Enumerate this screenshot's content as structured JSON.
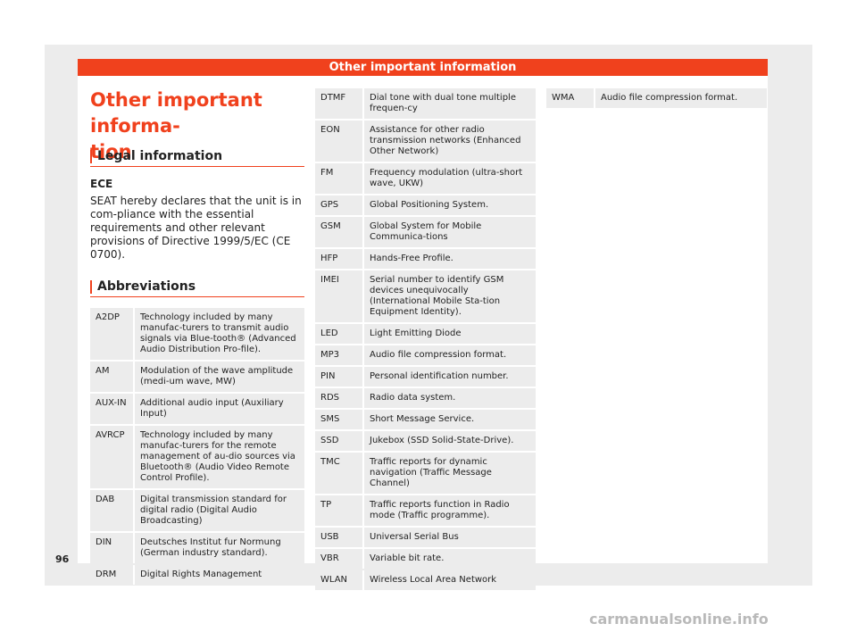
{
  "header": {
    "title": "Other important information"
  },
  "main": {
    "title": "Other important informa-\ntion",
    "legal_heading": "Legal information",
    "ece_label": "ECE",
    "ece_text": "SEAT hereby declares that the unit is in com-pliance with the essential requirements and other relevant provisions of Directive 1999/5/EC (CE 0700).",
    "abbreviations_heading": "Abbreviations"
  },
  "abbreviations_col1": [
    {
      "abbr": "A2DP",
      "desc": "Technology included by many manufac-turers to transmit audio signals via Blue-tooth® (Advanced Audio Distribution Pro-file)."
    },
    {
      "abbr": "AM",
      "desc": "Modulation of the wave amplitude (medi-um wave, MW)"
    },
    {
      "abbr": "AUX-IN",
      "desc": "Additional audio input (Auxiliary Input)"
    },
    {
      "abbr": "AVRCP",
      "desc": "Technology included by many manufac-turers for the remote management of au-dio sources via Bluetooth® (Audio Video Remote Control Profile)."
    },
    {
      "abbr": "DAB",
      "desc": "Digital transmission standard for digital radio (Digital Audio Broadcasting)"
    },
    {
      "abbr": "DIN",
      "desc": "Deutsches Institut fur Normung (German industry standard)."
    },
    {
      "abbr": "DRM",
      "desc": "Digital Rights Management"
    }
  ],
  "abbreviations_col2": [
    {
      "abbr": "DTMF",
      "desc": "Dial tone with dual tone multiple frequen-cy"
    },
    {
      "abbr": "EON",
      "desc": "Assistance for other radio transmission networks (Enhanced Other Network)"
    },
    {
      "abbr": "FM",
      "desc": "Frequency modulation (ultra-short wave, UKW)"
    },
    {
      "abbr": "GPS",
      "desc": "Global Positioning System."
    },
    {
      "abbr": "GSM",
      "desc": "Global System for Mobile Communica-tions"
    },
    {
      "abbr": "HFP",
      "desc": "Hands-Free Profile."
    },
    {
      "abbr": "IMEI",
      "desc": "Serial number to identify GSM devices unequivocally (International Mobile Sta-tion Equipment Identity)."
    },
    {
      "abbr": "LED",
      "desc": "Light Emitting Diode"
    },
    {
      "abbr": "MP3",
      "desc": "Audio file compression format."
    },
    {
      "abbr": "PIN",
      "desc": "Personal identification number."
    },
    {
      "abbr": "RDS",
      "desc": "Radio data system."
    },
    {
      "abbr": "SMS",
      "desc": "Short Message Service."
    },
    {
      "abbr": "SSD",
      "desc": "Jukebox (SSD Solid-State-Drive)."
    },
    {
      "abbr": "TMC",
      "desc": "Traffic reports for dynamic navigation (Traffic Message Channel)"
    },
    {
      "abbr": "TP",
      "desc": "Traffic reports function in Radio mode (Traffic programme)."
    },
    {
      "abbr": "USB",
      "desc": "Universal Serial Bus"
    },
    {
      "abbr": "VBR",
      "desc": "Variable bit rate."
    },
    {
      "abbr": "WLAN",
      "desc": "Wireless Local Area Network"
    }
  ],
  "abbreviations_col3": [
    {
      "abbr": "WMA",
      "desc": "Audio file compression format."
    }
  ],
  "footer": {
    "page_number": "96",
    "watermark": "carmanualsonline.info"
  },
  "colors": {
    "accent": "#f0411d",
    "row_bg": "#ececec",
    "frame_bg": "#ececec"
  }
}
